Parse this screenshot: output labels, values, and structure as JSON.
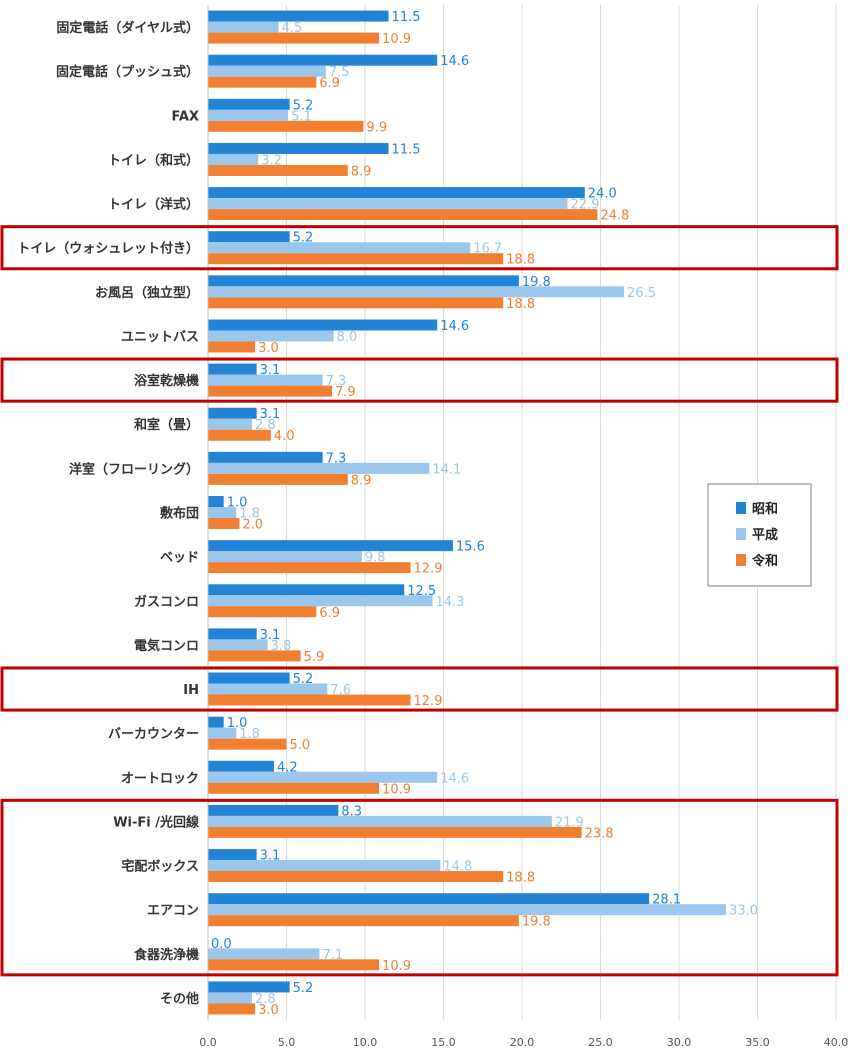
{
  "chart_data": {
    "type": "bar",
    "orientation": "horizontal",
    "categories": [
      "固定電話（ダイヤル式）",
      "固定電話（プッシュ式）",
      "FAX",
      "トイレ（和式）",
      "トイレ（洋式）",
      "トイレ（ウォシュレット付き）",
      "お風呂（独立型）",
      "ユニットバス",
      "浴室乾燥機",
      "和室（畳）",
      "洋室（フローリング）",
      "敷布団",
      "ベッド",
      "ガスコンロ",
      "電気コンロ",
      "IH",
      "バーカウンター",
      "オートロック",
      "Wi-Fi /光回線",
      "宅配ボックス",
      "エアコン",
      "食器洗浄機",
      "その他"
    ],
    "series": [
      {
        "name": "昭和",
        "color": "#2384d6",
        "values": [
          11.5,
          14.6,
          5.2,
          11.5,
          24.0,
          5.2,
          19.8,
          14.6,
          3.1,
          3.1,
          7.3,
          1.0,
          15.6,
          12.5,
          3.1,
          5.2,
          1.0,
          4.2,
          8.3,
          3.1,
          28.1,
          0.0,
          5.2
        ],
        "labels": [
          "11.5",
          "14.6",
          "5.2",
          "11.5",
          "24.0",
          "5.2",
          "19.8",
          "14.6",
          "3.1",
          "3.1",
          "7.3",
          "1.0",
          "15.6",
          "12.5",
          "3.1",
          "5.2",
          "1.0",
          "4.2",
          "8.3",
          "3.1",
          "28.1",
          "0.0",
          "5.2"
        ]
      },
      {
        "name": "平成",
        "color": "#9bc7ec",
        "values": [
          4.5,
          7.5,
          5.1,
          3.2,
          22.9,
          16.7,
          26.5,
          8.0,
          7.3,
          2.8,
          14.1,
          1.8,
          9.8,
          14.3,
          3.8,
          7.6,
          1.8,
          14.6,
          21.9,
          14.8,
          33.0,
          7.1,
          2.8
        ],
        "labels": [
          "4.5",
          "7.5",
          "5.1",
          "3.2",
          "22.9",
          "16.7",
          "26.5",
          "8.0",
          "7.3",
          "2.8",
          "14.1",
          "1.8",
          "9.8",
          "14.3",
          "3.8",
          "7.6",
          "1.8",
          "14.6",
          "21.9",
          "14.8",
          "33.0",
          "7.1",
          "2.8"
        ]
      },
      {
        "name": "令和",
        "color": "#f07f32",
        "values": [
          10.9,
          6.9,
          9.9,
          8.9,
          24.8,
          18.8,
          18.8,
          3.0,
          7.9,
          4.0,
          8.9,
          2.0,
          12.9,
          6.9,
          5.9,
          12.9,
          5.0,
          10.9,
          23.8,
          18.8,
          19.8,
          10.9,
          3.0
        ],
        "labels": [
          "10.9",
          "6.9",
          "9.9",
          "8.9",
          "24.8",
          "18.8",
          "18.8",
          "3.0",
          "7.9",
          "4.0",
          "8.9",
          "2.0",
          "12.9",
          "6.9",
          "5.9",
          "12.9",
          "5.0",
          "10.9",
          "23.8",
          "18.8",
          "19.8",
          "10.9",
          "3.0"
        ]
      }
    ],
    "xlim": [
      0,
      40
    ],
    "xticks": [
      "0.0",
      "5.0",
      "10.0",
      "15.0",
      "20.0",
      "25.0",
      "30.0",
      "35.0",
      "40.0"
    ],
    "grid": "vertical",
    "legend_position": "right-middle",
    "highlight_color": "#c00000",
    "highlight_groups": [
      [
        5,
        5
      ],
      [
        8,
        8
      ],
      [
        15,
        15
      ],
      [
        18,
        21
      ]
    ]
  }
}
